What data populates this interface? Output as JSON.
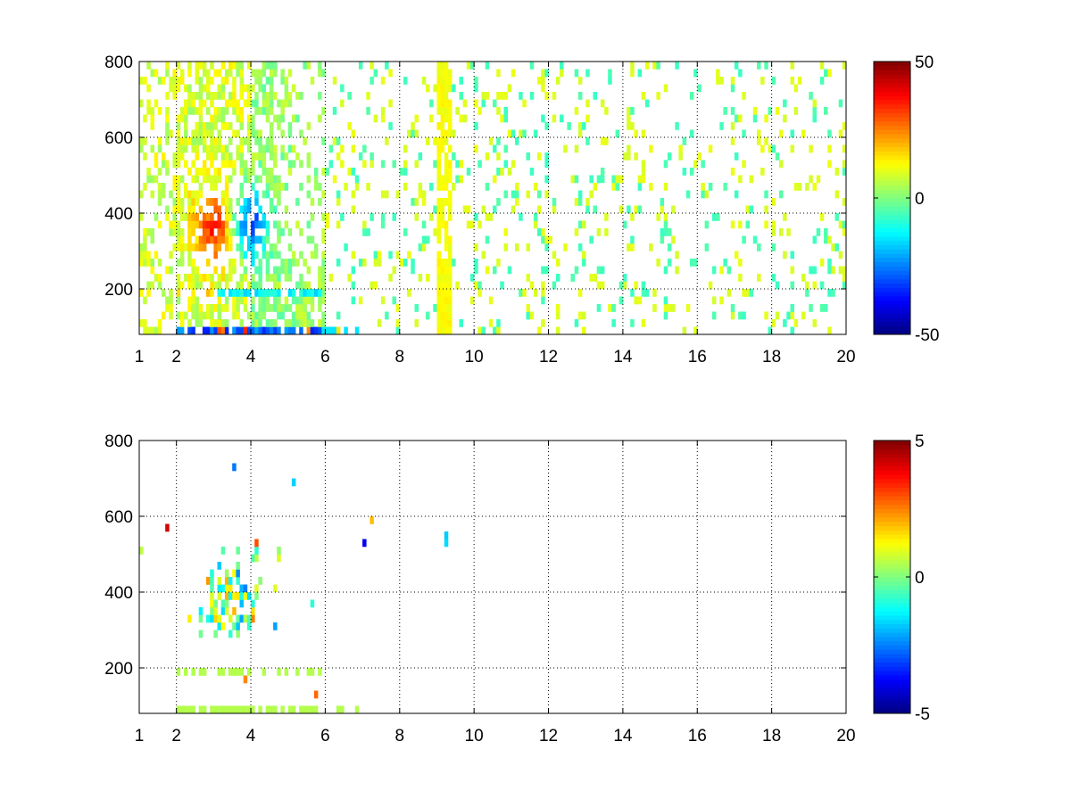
{
  "chart_data": [
    {
      "type": "heatmap",
      "title": "",
      "xlabel": "",
      "ylabel": "",
      "xlim": [
        1,
        20
      ],
      "ylim": [
        80,
        800
      ],
      "xticks": [
        "1",
        "2",
        "4",
        "6",
        "8",
        "10",
        "12",
        "14",
        "16",
        "18",
        "20"
      ],
      "yticks": [
        "200",
        "400",
        "600",
        "800"
      ],
      "grid": true,
      "colormap": "jet",
      "clim": [
        -50,
        50
      ],
      "colorbar_ticks": [
        "50",
        "0",
        "-50"
      ],
      "features": [
        {
          "region": "x 2.5-3.5, y 280-450",
          "value": 30
        },
        {
          "region": "x 3.5-4.5, y 280-450",
          "value": -20
        },
        {
          "region": "x 2-6, y 180-210",
          "value": -20
        },
        {
          "region": "x 2-6, y 80-100",
          "value": -40
        },
        {
          "region": "x 9-9.3, y 80-800",
          "value": 10
        },
        {
          "region": "x 6-20 scattered",
          "value_range": [
            -8,
            8
          ]
        }
      ]
    },
    {
      "type": "heatmap",
      "title": "",
      "xlabel": "",
      "ylabel": "",
      "xlim": [
        1,
        20
      ],
      "ylim": [
        80,
        800
      ],
      "xticks": [
        "1",
        "2",
        "4",
        "6",
        "8",
        "10",
        "12",
        "14",
        "16",
        "18",
        "20"
      ],
      "yticks": [
        "200",
        "400",
        "600",
        "800"
      ],
      "grid": true,
      "colormap": "jet",
      "clim": [
        -5,
        5
      ],
      "colorbar_ticks": [
        "5",
        "0",
        "-5"
      ],
      "features": [
        {
          "region": "x 2.5-4.5, y 280-500",
          "value_range": [
            -3,
            3
          ]
        },
        {
          "region": "x 2-6, y 180-210",
          "value": 0.5
        },
        {
          "region": "x 2-6, y 80-100",
          "value": 0.5
        },
        {
          "region": "x 9.2, y 370-570",
          "value_range": [
            -2,
            2
          ]
        }
      ]
    }
  ]
}
